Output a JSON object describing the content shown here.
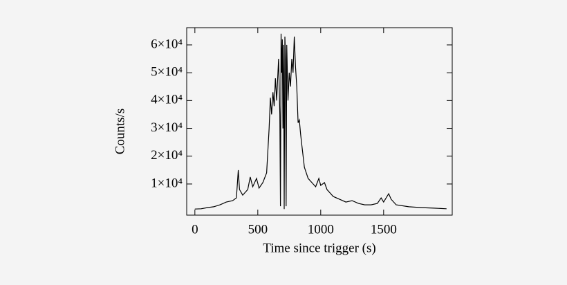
{
  "chart_data": {
    "type": "line",
    "xlabel": "Time since trigger (s)",
    "ylabel": "Counts/s",
    "x": [
      0,
      50,
      100,
      150,
      200,
      250,
      300,
      330,
      345,
      355,
      380,
      420,
      440,
      460,
      490,
      510,
      540,
      570,
      590,
      600,
      610,
      620,
      630,
      640,
      650,
      665,
      675,
      680,
      685,
      690,
      695,
      700,
      705,
      710,
      715,
      720,
      725,
      730,
      740,
      750,
      760,
      770,
      780,
      790,
      800,
      810,
      820,
      830,
      840,
      850,
      870,
      900,
      930,
      960,
      985,
      1000,
      1030,
      1050,
      1100,
      1150,
      1200,
      1250,
      1300,
      1350,
      1400,
      1450,
      1480,
      1500,
      1540,
      1560,
      1600,
      1700,
      1800,
      1900,
      2000
    ],
    "values": [
      1000,
      1100,
      1500,
      1800,
      2500,
      3500,
      4000,
      5000,
      15000,
      8000,
      6000,
      8000,
      12500,
      9000,
      12000,
      8500,
      10500,
      14000,
      30000,
      41000,
      35000,
      43000,
      38000,
      48000,
      40000,
      55000,
      35000,
      2000,
      64000,
      50000,
      62000,
      30000,
      60000,
      1000,
      63000,
      55000,
      2000,
      60000,
      40000,
      50000,
      45000,
      55000,
      50000,
      63000,
      52000,
      45000,
      32000,
      33000,
      28000,
      24000,
      16000,
      12000,
      10500,
      9000,
      12000,
      9500,
      10500,
      8000,
      5500,
      4500,
      3500,
      4000,
      3000,
      2500,
      2500,
      3000,
      5000,
      3500,
      6500,
      4500,
      2500,
      1800,
      1500,
      1300,
      1100
    ],
    "color": "#000000",
    "xlim": [
      -65,
      2045
    ],
    "ylim": [
      -1200,
      66200
    ],
    "xticks": [
      0,
      500,
      1000,
      1500
    ],
    "yticks": [
      {
        "value": 10000,
        "label": "1×10⁴"
      },
      {
        "value": 20000,
        "label": "2×10⁴"
      },
      {
        "value": 30000,
        "label": "3×10⁴"
      },
      {
        "value": 40000,
        "label": "4×10⁴"
      },
      {
        "value": 50000,
        "label": "5×10⁴"
      },
      {
        "value": 60000,
        "label": "6×10⁴"
      }
    ]
  }
}
